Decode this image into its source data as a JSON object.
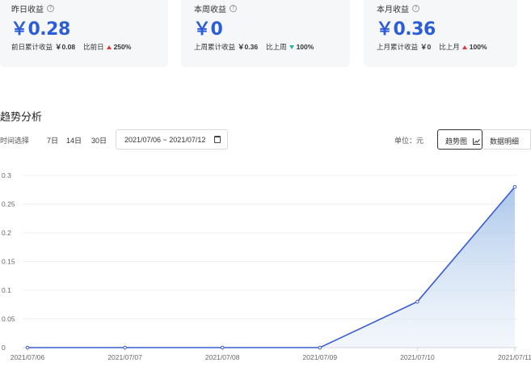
{
  "cards": [
    {
      "title": "昨日收益",
      "value": "￥0.28",
      "compare_label": "前日累计收益",
      "compare_value": "￥0.08",
      "ratio_label": "比前日",
      "direction": "up",
      "ratio": "250%"
    },
    {
      "title": "本周收益",
      "value": "￥0",
      "compare_label": "上周累计收益",
      "compare_value": "￥0.36",
      "ratio_label": "比上周",
      "direction": "down",
      "ratio": "100%"
    },
    {
      "title": "本月收益",
      "value": "￥0.36",
      "compare_label": "上月累计收益",
      "compare_value": "￥0",
      "ratio_label": "比上月",
      "direction": "up",
      "ratio": "100%"
    }
  ],
  "colors": {
    "accent": "#2c5cd6",
    "up": "#e23a3a",
    "down": "#2bb39a",
    "line": "#3a5ccf"
  },
  "section": {
    "title": "趋势分析"
  },
  "toolbar": {
    "time_label": "时间选择",
    "ranges": [
      "7日",
      "14日",
      "30日"
    ],
    "date_range": "2021/07/06 ~ 2021/07/12",
    "unit_label": "单位：元",
    "view_trend": "趋势图",
    "view_table": "数据明细"
  },
  "chart_data": {
    "type": "area",
    "categories": [
      "2021/07/06",
      "2021/07/07",
      "2021/07/08",
      "2021/07/09",
      "2021/07/10",
      "2021/07/11"
    ],
    "values": [
      0,
      0,
      0,
      0,
      0.08,
      0.28
    ],
    "y_ticks": [
      "0",
      "0.05",
      "0.1",
      "0.15",
      "0.2",
      "0.25",
      "0.3"
    ],
    "ylim": [
      0,
      0.3
    ],
    "grid": true,
    "title": "",
    "xlabel": "",
    "ylabel": ""
  }
}
